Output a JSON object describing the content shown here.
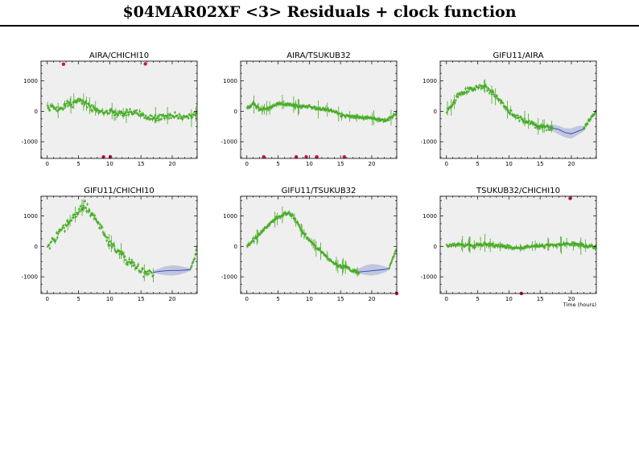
{
  "page": {
    "title": "$04MAR02XF <3> Residuals + clock function"
  },
  "colors": {
    "points": "#44aa22",
    "model_line": "#3344aa",
    "model_band": "#b7bedc",
    "outliers": "#cc1144",
    "panel_bg": "#efefef"
  },
  "chart_data": [
    {
      "type": "scatter",
      "title": "AIRA/CHICHI10",
      "xlim": [
        -1,
        24
      ],
      "ylim": [
        -1550,
        1650
      ],
      "xticks": [
        0,
        5,
        10,
        15,
        20
      ],
      "yticks": [
        -1000,
        0,
        1000
      ],
      "xlabel": "",
      "curve": [
        [
          0,
          150
        ],
        [
          1,
          120
        ],
        [
          2,
          60
        ],
        [
          3,
          220
        ],
        [
          4,
          240
        ],
        [
          5,
          380
        ],
        [
          6,
          320
        ],
        [
          7,
          170
        ],
        [
          8,
          20
        ],
        [
          9,
          -10
        ],
        [
          10,
          -20
        ],
        [
          11,
          -50
        ],
        [
          12,
          -80
        ],
        [
          13,
          -40
        ],
        [
          14,
          -90
        ],
        [
          15,
          -100
        ],
        [
          16,
          -170
        ],
        [
          17,
          -210
        ],
        [
          18,
          -200
        ],
        [
          19,
          -180
        ],
        [
          20,
          -150
        ],
        [
          21,
          -170
        ],
        [
          22,
          -190
        ],
        [
          23,
          -160
        ],
        [
          24,
          -20
        ]
      ],
      "noise": 90,
      "band": [],
      "model": [],
      "outliers": [
        [
          2.6,
          1550
        ],
        [
          9,
          -1500
        ],
        [
          10.1,
          -1500
        ],
        [
          15.7,
          1560
        ]
      ]
    },
    {
      "type": "scatter",
      "title": "AIRA/TSUKUB32",
      "xlim": [
        -1,
        24
      ],
      "ylim": [
        -1550,
        1650
      ],
      "xticks": [
        0,
        5,
        10,
        15,
        20
      ],
      "yticks": [
        -1000,
        0,
        1000
      ],
      "xlabel": "",
      "curve": [
        [
          0,
          80
        ],
        [
          1,
          250
        ],
        [
          2,
          70
        ],
        [
          3,
          60
        ],
        [
          4,
          130
        ],
        [
          5,
          260
        ],
        [
          6,
          240
        ],
        [
          7,
          220
        ],
        [
          8,
          180
        ],
        [
          9,
          160
        ],
        [
          10,
          150
        ],
        [
          11,
          100
        ],
        [
          12,
          70
        ],
        [
          13,
          40
        ],
        [
          14,
          0
        ],
        [
          15,
          -120
        ],
        [
          16,
          -150
        ],
        [
          17,
          -180
        ],
        [
          18,
          -200
        ],
        [
          19,
          -230
        ],
        [
          20,
          -210
        ],
        [
          21,
          -270
        ],
        [
          22,
          -300
        ],
        [
          23,
          -230
        ],
        [
          24,
          -20
        ]
      ],
      "noise": 35,
      "band": [],
      "model": [],
      "outliers": [
        [
          2.7,
          -1500
        ],
        [
          7.9,
          -1500
        ],
        [
          9.5,
          -1500
        ],
        [
          11.2,
          -1500
        ],
        [
          15.6,
          -1500
        ]
      ]
    },
    {
      "type": "scatter",
      "title": "GIFU11/AIRA",
      "xlim": [
        -1,
        24
      ],
      "ylim": [
        -1550,
        1650
      ],
      "xticks": [
        0,
        5,
        10,
        15,
        20
      ],
      "yticks": [
        -1000,
        0,
        1000
      ],
      "xlabel": "",
      "curve": [
        [
          0,
          0
        ],
        [
          1,
          250
        ],
        [
          2,
          550
        ],
        [
          3,
          680
        ],
        [
          4,
          700
        ],
        [
          5,
          780
        ],
        [
          6,
          850
        ],
        [
          7,
          650
        ],
        [
          8,
          500
        ],
        [
          9,
          250
        ],
        [
          10,
          0
        ],
        [
          11,
          -150
        ],
        [
          12,
          -250
        ],
        [
          13,
          -350
        ],
        [
          14,
          -450
        ],
        [
          15,
          -500
        ],
        [
          16,
          -520
        ],
        [
          17,
          -580
        ]
      ],
      "noise": 70,
      "band": [
        [
          14,
          -440,
          -480
        ],
        [
          16,
          -460,
          -550
        ],
        [
          17,
          -430,
          -650
        ],
        [
          18,
          -480,
          -760
        ],
        [
          19,
          -560,
          -860
        ],
        [
          20,
          -560,
          -900
        ],
        [
          21,
          -480,
          -780
        ],
        [
          22,
          -480,
          -660
        ]
      ],
      "model": [
        [
          14,
          -460
        ],
        [
          16,
          -500
        ],
        [
          18,
          -600
        ],
        [
          19,
          -700
        ],
        [
          20,
          -740
        ],
        [
          22,
          -580
        ]
      ],
      "tail": [
        [
          22,
          -560
        ],
        [
          23,
          -260
        ],
        [
          24,
          0
        ]
      ],
      "outliers": []
    },
    {
      "type": "scatter",
      "title": "GIFU11/CHICHI10",
      "xlim": [
        -1,
        24
      ],
      "ylim": [
        -1550,
        1650
      ],
      "xticks": [
        0,
        5,
        10,
        15,
        20
      ],
      "yticks": [
        -1000,
        0,
        1000
      ],
      "xlabel": "",
      "curve": [
        [
          0,
          -50
        ],
        [
          1,
          200
        ],
        [
          2,
          450
        ],
        [
          3,
          700
        ],
        [
          4,
          950
        ],
        [
          5,
          1150
        ],
        [
          6,
          1350
        ],
        [
          7,
          1100
        ],
        [
          8,
          800
        ],
        [
          9,
          450
        ],
        [
          10,
          150
        ],
        [
          11,
          -100
        ],
        [
          12,
          -300
        ],
        [
          13,
          -500
        ],
        [
          14,
          -650
        ],
        [
          15,
          -800
        ],
        [
          16,
          -880
        ],
        [
          17,
          -900
        ]
      ],
      "noise": 110,
      "band": [
        [
          17,
          -800,
          -880
        ],
        [
          18,
          -720,
          -920
        ],
        [
          19,
          -650,
          -950
        ],
        [
          20,
          -620,
          -960
        ],
        [
          21,
          -640,
          -940
        ],
        [
          22,
          -680,
          -880
        ],
        [
          23,
          -720,
          -800
        ]
      ],
      "model": [
        [
          17,
          -850
        ],
        [
          18,
          -820
        ],
        [
          19,
          -800
        ],
        [
          20,
          -790
        ],
        [
          21,
          -790
        ],
        [
          22,
          -780
        ],
        [
          23,
          -760
        ]
      ],
      "tail": [
        [
          23,
          -700
        ],
        [
          23.6,
          -400
        ],
        [
          24,
          50
        ]
      ],
      "outliers": []
    },
    {
      "type": "scatter",
      "title": "GIFU11/TSUKUB32",
      "xlim": [
        -1,
        24
      ],
      "ylim": [
        -1550,
        1650
      ],
      "xticks": [
        0,
        5,
        10,
        15,
        20
      ],
      "yticks": [
        -1000,
        0,
        1000
      ],
      "xlabel": "",
      "curve": [
        [
          0,
          0
        ],
        [
          1,
          200
        ],
        [
          2,
          400
        ],
        [
          3,
          600
        ],
        [
          4,
          800
        ],
        [
          5,
          950
        ],
        [
          6,
          1050
        ],
        [
          7,
          1100
        ],
        [
          8,
          800
        ],
        [
          9,
          450
        ],
        [
          10,
          200
        ],
        [
          11,
          0
        ],
        [
          12,
          -200
        ],
        [
          13,
          -400
        ],
        [
          14,
          -550
        ],
        [
          15,
          -650
        ],
        [
          16,
          -700
        ],
        [
          17,
          -800
        ],
        [
          18,
          -880
        ]
      ],
      "noise": 45,
      "band": [
        [
          17,
          -780,
          -820
        ],
        [
          18,
          -720,
          -900
        ],
        [
          19,
          -620,
          -940
        ],
        [
          20,
          -580,
          -960
        ],
        [
          21,
          -600,
          -930
        ],
        [
          22,
          -650,
          -860
        ],
        [
          22.8,
          -720,
          -780
        ]
      ],
      "model": [
        [
          18,
          -840
        ],
        [
          20,
          -800
        ],
        [
          22,
          -760
        ],
        [
          22.8,
          -720
        ]
      ],
      "tail": [
        [
          22.8,
          -700
        ],
        [
          23.5,
          -350
        ],
        [
          24,
          -20
        ]
      ],
      "outliers": [
        [
          24,
          -1560
        ]
      ]
    },
    {
      "type": "scatter",
      "title": "TSUKUB32/CHICHI10",
      "xlim": [
        -1,
        24
      ],
      "ylim": [
        -1550,
        1650
      ],
      "xticks": [
        0,
        5,
        10,
        15,
        20
      ],
      "yticks": [
        -1000,
        0,
        1000
      ],
      "xlabel": "Time (hours)",
      "curve": [
        [
          0,
          20
        ],
        [
          2,
          60
        ],
        [
          4,
          20
        ],
        [
          6,
          80
        ],
        [
          8,
          30
        ],
        [
          10,
          -20
        ],
        [
          12,
          -50
        ],
        [
          14,
          0
        ],
        [
          16,
          30
        ],
        [
          18,
          50
        ],
        [
          20,
          90
        ],
        [
          22,
          30
        ],
        [
          24,
          -40
        ]
      ],
      "noise": 45,
      "band": [],
      "model": [],
      "outliers": [
        [
          19.8,
          1580
        ],
        [
          12,
          -1560
        ]
      ]
    }
  ]
}
